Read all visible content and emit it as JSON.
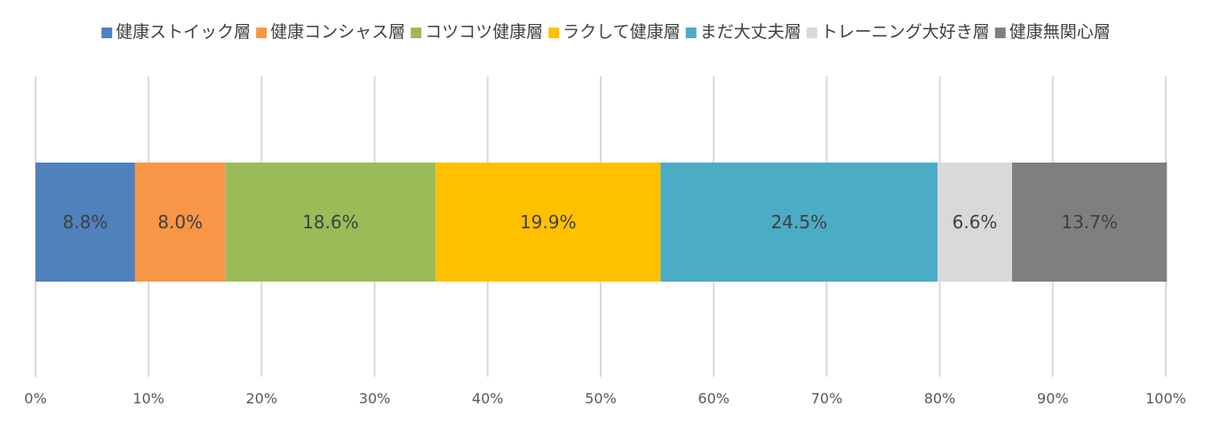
{
  "chart_data": {
    "type": "bar",
    "orientation": "horizontal",
    "stacked": "percent",
    "categories": [
      ""
    ],
    "series": [
      {
        "name": "健康ストイック層",
        "values": [
          8.8
        ],
        "label": "8.8%",
        "color": "#4f81bd"
      },
      {
        "name": "健康コンシャス層",
        "values": [
          8.0
        ],
        "label": "8.0%",
        "color": "#f79646"
      },
      {
        "name": "コツコツ健康層",
        "values": [
          18.6
        ],
        "label": "18.6%",
        "color": "#9bbb59"
      },
      {
        "name": "ラクして健康層",
        "values": [
          19.9
        ],
        "label": "19.9%",
        "color": "#ffc000"
      },
      {
        "name": "まだ大丈夫層",
        "values": [
          24.5
        ],
        "label": "24.5%",
        "color": "#4bacc6"
      },
      {
        "name": "トレーニング大好き層",
        "values": [
          6.6
        ],
        "label": "6.6%",
        "color": "#d9d9d9"
      },
      {
        "name": "健康無関心層",
        "values": [
          13.7
        ],
        "label": "13.7%",
        "color": "#7f7f7f"
      }
    ],
    "x_ticks": [
      "0%",
      "10%",
      "20%",
      "30%",
      "40%",
      "50%",
      "60%",
      "70%",
      "80%",
      "90%",
      "100%"
    ],
    "xlim": [
      0,
      100
    ],
    "grid": "vertical",
    "legend": "top",
    "title": "",
    "xlabel": "",
    "ylabel": ""
  }
}
